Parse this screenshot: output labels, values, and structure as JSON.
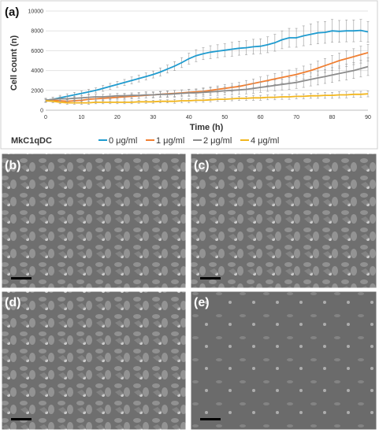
{
  "chart_data": {
    "type": "line",
    "panel_label": "(a)",
    "title": "",
    "xlabel": "Time (h)",
    "ylabel": "Cell count (n)",
    "xlim": [
      0,
      90
    ],
    "ylim": [
      0,
      10000
    ],
    "xticks": [
      0,
      10,
      20,
      30,
      40,
      50,
      60,
      70,
      80,
      90
    ],
    "yticks": [
      0,
      2000,
      4000,
      6000,
      8000,
      10000
    ],
    "grid": "horizontal",
    "legend": {
      "title": "MkC1qDC",
      "placement": "bottom"
    },
    "error_bars": true,
    "x": [
      0,
      2,
      4,
      6,
      8,
      10,
      12,
      14,
      16,
      18,
      20,
      22,
      24,
      26,
      28,
      30,
      32,
      34,
      36,
      38,
      40,
      42,
      44,
      46,
      48,
      50,
      52,
      54,
      56,
      58,
      60,
      62,
      64,
      66,
      68,
      70,
      72,
      74,
      76,
      78,
      80,
      82,
      84,
      86,
      88,
      90
    ],
    "series": [
      {
        "name": "0 μg/ml",
        "color": "#1f9bcf",
        "values": [
          1000,
          1100,
          1250,
          1400,
          1550,
          1700,
          1850,
          2000,
          2200,
          2400,
          2600,
          2800,
          3000,
          3200,
          3400,
          3600,
          3850,
          4150,
          4450,
          4800,
          5200,
          5500,
          5700,
          5850,
          5950,
          6050,
          6150,
          6250,
          6300,
          6400,
          6450,
          6600,
          6800,
          7100,
          7300,
          7300,
          7500,
          7650,
          7800,
          7850,
          8000,
          7950,
          8000,
          8000,
          8050,
          7900
        ],
        "errors": [
          200,
          200,
          250,
          250,
          250,
          250,
          250,
          250,
          300,
          300,
          300,
          300,
          350,
          350,
          350,
          350,
          400,
          400,
          450,
          500,
          550,
          600,
          600,
          650,
          650,
          650,
          700,
          700,
          700,
          750,
          750,
          800,
          850,
          900,
          950,
          950,
          1000,
          1050,
          1100,
          1100,
          1150,
          1100,
          1100,
          1100,
          1100,
          1050
        ]
      },
      {
        "name": "1 μg/ml",
        "color": "#f07f32",
        "values": [
          1000,
          1000,
          950,
          900,
          950,
          1000,
          1100,
          1150,
          1200,
          1250,
          1300,
          1350,
          1400,
          1450,
          1500,
          1550,
          1600,
          1650,
          1700,
          1750,
          1800,
          1850,
          1900,
          2000,
          2100,
          2200,
          2300,
          2400,
          2550,
          2700,
          2850,
          3000,
          3150,
          3300,
          3450,
          3600,
          3800,
          4000,
          4250,
          4500,
          4750,
          5000,
          5200,
          5400,
          5600,
          5800
        ],
        "errors": [
          150,
          150,
          150,
          150,
          150,
          200,
          200,
          200,
          200,
          200,
          200,
          250,
          250,
          250,
          250,
          250,
          250,
          300,
          300,
          300,
          300,
          300,
          350,
          350,
          350,
          400,
          400,
          400,
          450,
          450,
          500,
          500,
          550,
          550,
          600,
          600,
          650,
          650,
          700,
          700,
          750,
          750,
          800,
          800,
          850,
          850
        ]
      },
      {
        "name": "2 μg/ml",
        "color": "#8c8c8c",
        "values": [
          1000,
          1100,
          1150,
          1150,
          1200,
          1250,
          1300,
          1350,
          1350,
          1400,
          1450,
          1450,
          1500,
          1500,
          1550,
          1550,
          1600,
          1600,
          1650,
          1700,
          1750,
          1750,
          1800,
          1850,
          1900,
          1950,
          2000,
          2050,
          2100,
          2200,
          2300,
          2400,
          2500,
          2600,
          2700,
          2800,
          2950,
          3100,
          3250,
          3400,
          3550,
          3700,
          3850,
          4000,
          4200,
          4400
        ],
        "errors": [
          200,
          200,
          200,
          200,
          200,
          200,
          250,
          250,
          250,
          250,
          250,
          250,
          250,
          300,
          300,
          300,
          300,
          300,
          350,
          350,
          350,
          350,
          400,
          400,
          400,
          400,
          450,
          450,
          450,
          500,
          500,
          500,
          550,
          550,
          600,
          600,
          650,
          650,
          700,
          700,
          750,
          750,
          800,
          800,
          850,
          900
        ]
      },
      {
        "name": "4 μg/ml",
        "color": "#f2b61e",
        "values": [
          950,
          900,
          800,
          750,
          750,
          750,
          750,
          800,
          800,
          800,
          800,
          800,
          800,
          850,
          850,
          850,
          900,
          900,
          900,
          950,
          950,
          1000,
          1000,
          1050,
          1100,
          1100,
          1150,
          1200,
          1200,
          1250,
          1250,
          1300,
          1300,
          1350,
          1350,
          1400,
          1400,
          1450,
          1450,
          1500,
          1500,
          1550,
          1550,
          1600,
          1600,
          1650
        ],
        "errors": [
          150,
          150,
          150,
          150,
          150,
          150,
          150,
          150,
          150,
          150,
          150,
          150,
          150,
          150,
          150,
          150,
          150,
          150,
          200,
          200,
          200,
          200,
          200,
          200,
          200,
          200,
          200,
          200,
          200,
          250,
          250,
          250,
          250,
          250,
          250,
          250,
          250,
          250,
          250,
          300,
          300,
          300,
          300,
          300,
          300,
          300
        ]
      }
    ]
  },
  "micrographs": [
    {
      "label": "(b)",
      "density": "high"
    },
    {
      "label": "(c)",
      "density": "medium"
    },
    {
      "label": "(d)",
      "density": "medium"
    },
    {
      "label": "(e)",
      "density": "low"
    }
  ]
}
